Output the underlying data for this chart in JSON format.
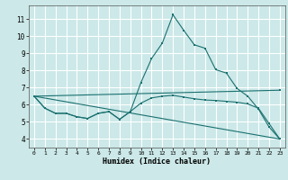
{
  "xlabel": "Humidex (Indice chaleur)",
  "background_color": "#cce8e8",
  "grid_color": "#ffffff",
  "line_color": "#1a7070",
  "xticks": [
    0,
    1,
    2,
    3,
    4,
    5,
    6,
    7,
    8,
    9,
    10,
    11,
    12,
    13,
    14,
    15,
    16,
    17,
    18,
    19,
    20,
    21,
    22,
    23
  ],
  "yticks": [
    4,
    5,
    6,
    7,
    8,
    9,
    10,
    11
  ],
  "xlim": [
    -0.5,
    23.5
  ],
  "ylim": [
    3.5,
    11.8
  ],
  "line1_x": [
    0,
    1,
    2,
    3,
    4,
    5,
    6,
    7,
    8,
    9,
    10,
    11,
    12,
    13,
    14,
    15,
    16,
    17,
    18,
    19,
    20,
    21,
    22,
    23
  ],
  "line1_y": [
    6.5,
    5.8,
    5.5,
    5.5,
    5.3,
    5.2,
    5.5,
    5.6,
    5.15,
    5.6,
    7.3,
    8.7,
    9.6,
    11.25,
    10.35,
    9.5,
    9.3,
    8.05,
    7.85,
    6.95,
    6.5,
    5.75,
    4.7,
    4.0
  ],
  "line2_x": [
    0,
    1,
    2,
    3,
    4,
    5,
    6,
    7,
    8,
    9,
    10,
    11,
    12,
    13,
    14,
    15,
    16,
    17,
    18,
    19,
    20,
    21,
    22,
    23
  ],
  "line2_y": [
    6.5,
    5.8,
    5.5,
    5.5,
    5.3,
    5.2,
    5.5,
    5.6,
    5.15,
    5.6,
    6.1,
    6.4,
    6.5,
    6.55,
    6.45,
    6.35,
    6.28,
    6.25,
    6.2,
    6.15,
    6.05,
    5.8,
    4.9,
    4.0
  ],
  "line3_x": [
    0,
    23
  ],
  "line3_y": [
    6.5,
    4.0
  ],
  "line4_x": [
    0,
    23
  ],
  "line4_y": [
    6.5,
    6.85
  ]
}
